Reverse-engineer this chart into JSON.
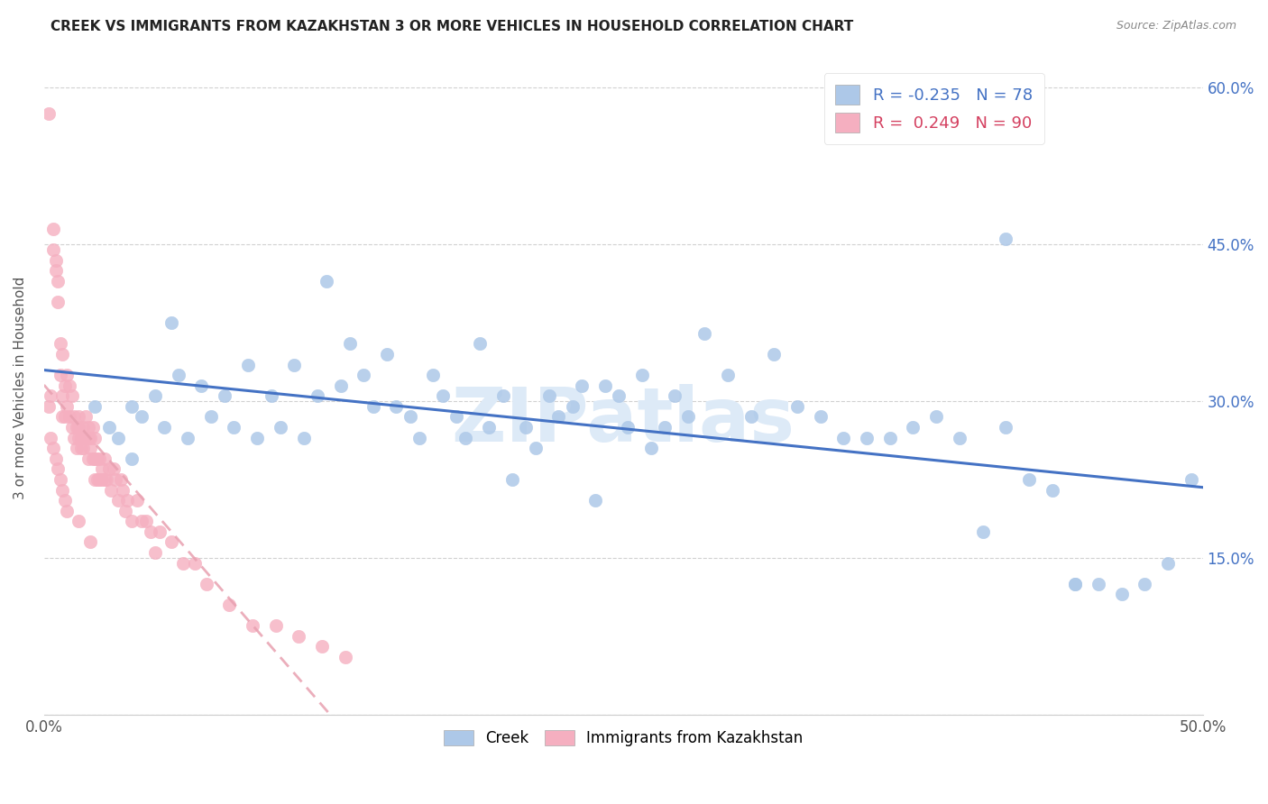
{
  "title": "CREEK VS IMMIGRANTS FROM KAZAKHSTAN 3 OR MORE VEHICLES IN HOUSEHOLD CORRELATION CHART",
  "source": "Source: ZipAtlas.com",
  "ylabel": "3 or more Vehicles in Household",
  "xlim": [
    0.0,
    0.5
  ],
  "ylim": [
    0.0,
    0.625
  ],
  "xtick_positions": [
    0.0,
    0.5
  ],
  "xticklabels": [
    "0.0%",
    "50.0%"
  ],
  "right_ytick_positions": [
    0.15,
    0.3,
    0.45,
    0.6
  ],
  "right_yticklabels": [
    "15.0%",
    "30.0%",
    "45.0%",
    "60.0%"
  ],
  "creek_R": -0.235,
  "creek_N": 78,
  "kaz_R": 0.249,
  "kaz_N": 90,
  "creek_color": "#adc8e8",
  "kaz_color": "#f5afc0",
  "creek_line_color": "#4472c4",
  "kaz_line_color": "#e8a0b0",
  "watermark": "ZIPatlas",
  "creek_scatter_x": [
    0.022,
    0.028,
    0.032,
    0.038,
    0.042,
    0.048,
    0.052,
    0.058,
    0.062,
    0.068,
    0.072,
    0.078,
    0.082,
    0.088,
    0.092,
    0.098,
    0.102,
    0.108,
    0.112,
    0.118,
    0.122,
    0.128,
    0.132,
    0.138,
    0.142,
    0.148,
    0.152,
    0.158,
    0.162,
    0.168,
    0.172,
    0.178,
    0.182,
    0.188,
    0.192,
    0.198,
    0.202,
    0.208,
    0.212,
    0.218,
    0.222,
    0.228,
    0.232,
    0.238,
    0.242,
    0.248,
    0.252,
    0.258,
    0.262,
    0.268,
    0.272,
    0.278,
    0.285,
    0.295,
    0.305,
    0.315,
    0.325,
    0.335,
    0.345,
    0.355,
    0.365,
    0.375,
    0.385,
    0.395,
    0.405,
    0.415,
    0.425,
    0.435,
    0.445,
    0.455,
    0.465,
    0.475,
    0.485,
    0.495,
    0.038,
    0.055,
    0.415,
    0.445
  ],
  "creek_scatter_y": [
    0.295,
    0.275,
    0.265,
    0.245,
    0.285,
    0.305,
    0.275,
    0.325,
    0.265,
    0.315,
    0.285,
    0.305,
    0.275,
    0.335,
    0.265,
    0.305,
    0.275,
    0.335,
    0.265,
    0.305,
    0.415,
    0.315,
    0.355,
    0.325,
    0.295,
    0.345,
    0.295,
    0.285,
    0.265,
    0.325,
    0.305,
    0.285,
    0.265,
    0.355,
    0.275,
    0.305,
    0.225,
    0.275,
    0.255,
    0.305,
    0.285,
    0.295,
    0.315,
    0.205,
    0.315,
    0.305,
    0.275,
    0.325,
    0.255,
    0.275,
    0.305,
    0.285,
    0.365,
    0.325,
    0.285,
    0.345,
    0.295,
    0.285,
    0.265,
    0.265,
    0.265,
    0.275,
    0.285,
    0.265,
    0.175,
    0.275,
    0.225,
    0.215,
    0.125,
    0.125,
    0.115,
    0.125,
    0.145,
    0.225,
    0.295,
    0.375,
    0.455,
    0.125
  ],
  "kaz_scatter_x": [
    0.002,
    0.003,
    0.004,
    0.004,
    0.005,
    0.005,
    0.006,
    0.006,
    0.007,
    0.007,
    0.008,
    0.008,
    0.008,
    0.009,
    0.009,
    0.01,
    0.01,
    0.011,
    0.011,
    0.012,
    0.012,
    0.013,
    0.013,
    0.014,
    0.014,
    0.015,
    0.015,
    0.015,
    0.016,
    0.016,
    0.017,
    0.017,
    0.018,
    0.018,
    0.019,
    0.019,
    0.019,
    0.02,
    0.02,
    0.021,
    0.021,
    0.022,
    0.022,
    0.022,
    0.023,
    0.023,
    0.024,
    0.024,
    0.025,
    0.025,
    0.026,
    0.026,
    0.027,
    0.028,
    0.029,
    0.03,
    0.031,
    0.032,
    0.033,
    0.034,
    0.035,
    0.036,
    0.038,
    0.04,
    0.042,
    0.044,
    0.046,
    0.048,
    0.05,
    0.055,
    0.06,
    0.065,
    0.07,
    0.08,
    0.09,
    0.1,
    0.11,
    0.12,
    0.13,
    0.002,
    0.003,
    0.004,
    0.005,
    0.006,
    0.007,
    0.008,
    0.009,
    0.01,
    0.015,
    0.02
  ],
  "kaz_scatter_y": [
    0.575,
    0.305,
    0.465,
    0.445,
    0.435,
    0.425,
    0.415,
    0.395,
    0.355,
    0.325,
    0.345,
    0.305,
    0.285,
    0.315,
    0.285,
    0.325,
    0.295,
    0.315,
    0.285,
    0.305,
    0.275,
    0.285,
    0.265,
    0.275,
    0.255,
    0.285,
    0.275,
    0.265,
    0.265,
    0.255,
    0.275,
    0.255,
    0.285,
    0.265,
    0.275,
    0.245,
    0.265,
    0.265,
    0.255,
    0.275,
    0.245,
    0.265,
    0.245,
    0.225,
    0.245,
    0.225,
    0.245,
    0.225,
    0.235,
    0.225,
    0.245,
    0.225,
    0.225,
    0.235,
    0.215,
    0.235,
    0.225,
    0.205,
    0.225,
    0.215,
    0.195,
    0.205,
    0.185,
    0.205,
    0.185,
    0.185,
    0.175,
    0.155,
    0.175,
    0.165,
    0.145,
    0.145,
    0.125,
    0.105,
    0.085,
    0.085,
    0.075,
    0.065,
    0.055,
    0.295,
    0.265,
    0.255,
    0.245,
    0.235,
    0.225,
    0.215,
    0.205,
    0.195,
    0.185,
    0.165
  ]
}
